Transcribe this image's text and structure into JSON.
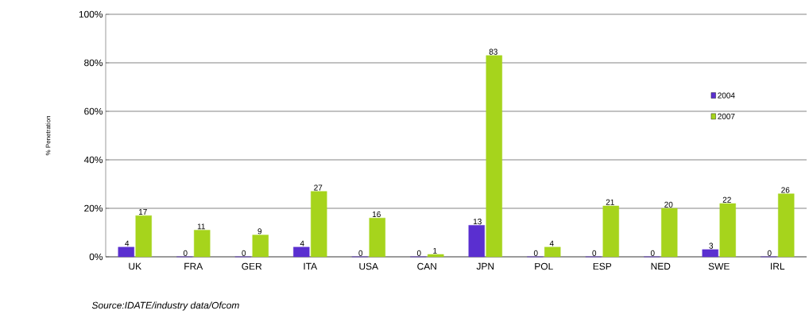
{
  "chart_data": {
    "type": "bar",
    "ylabel": "% Penetration",
    "categories": [
      "UK",
      "FRA",
      "GER",
      "ITA",
      "USA",
      "CAN",
      "JPN",
      "POL",
      "ESP",
      "NED",
      "SWE",
      "IRL"
    ],
    "series": [
      {
        "name": "2004",
        "color": "#5a2fd0",
        "values": [
          4,
          0,
          0,
          4,
          0,
          0,
          13,
          0,
          0,
          0,
          3,
          0
        ]
      },
      {
        "name": "2007",
        "color": "#a6d41c",
        "values": [
          17,
          11,
          9,
          27,
          16,
          1,
          83,
          4,
          21,
          20,
          22,
          26
        ]
      }
    ],
    "ylim": [
      0,
      100
    ],
    "yticks": [
      {
        "value": 0,
        "label": "0%"
      },
      {
        "value": 20,
        "label": "20%"
      },
      {
        "value": 40,
        "label": "40%"
      },
      {
        "value": 60,
        "label": "60%"
      },
      {
        "value": 80,
        "label": "80%"
      },
      {
        "value": 100,
        "label": "100%"
      }
    ],
    "grid": "y",
    "legend": "right",
    "data_labels": true,
    "annotations": [
      "Source:IDATE/industry data/Ofcom"
    ]
  }
}
